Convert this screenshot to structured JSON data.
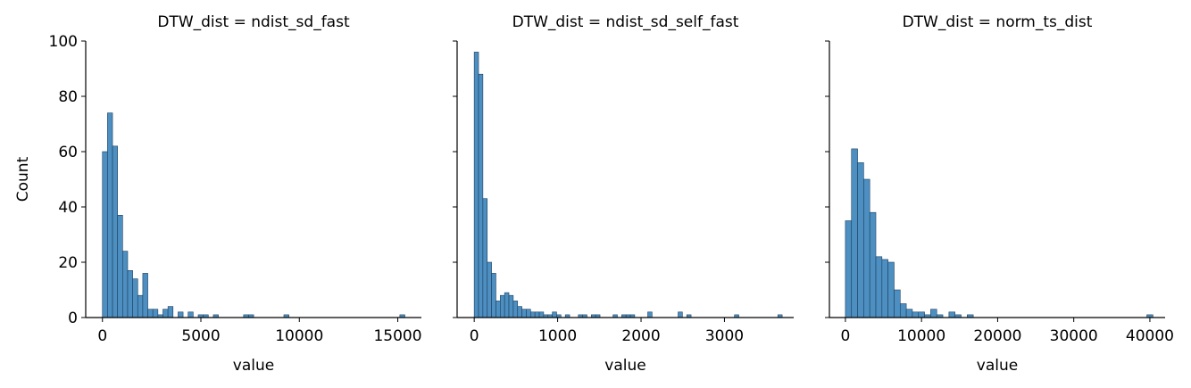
{
  "chart_data": [
    {
      "type": "bar",
      "title": "DTW_dist = ndist_sd_fast",
      "xlabel": "value",
      "ylabel": "Count",
      "xlim": [
        -850,
        16200
      ],
      "ylim": [
        0,
        100
      ],
      "xticks": [
        0,
        5000,
        10000,
        15000
      ],
      "xtick_labels": [
        "0",
        "5000",
        "10000",
        "15000"
      ],
      "yticks": [
        0,
        20,
        40,
        60,
        80,
        100
      ],
      "ytick_labels": [
        "0",
        "20",
        "40",
        "60",
        "80",
        "100"
      ],
      "bin_width": 256,
      "bins": [
        {
          "x": 0,
          "count": 60
        },
        {
          "x": 256,
          "count": 74
        },
        {
          "x": 512,
          "count": 62
        },
        {
          "x": 768,
          "count": 37
        },
        {
          "x": 1024,
          "count": 24
        },
        {
          "x": 1280,
          "count": 17
        },
        {
          "x": 1536,
          "count": 14
        },
        {
          "x": 1792,
          "count": 8
        },
        {
          "x": 2048,
          "count": 16
        },
        {
          "x": 2304,
          "count": 3
        },
        {
          "x": 2560,
          "count": 3
        },
        {
          "x": 2816,
          "count": 1
        },
        {
          "x": 3072,
          "count": 3
        },
        {
          "x": 3328,
          "count": 4
        },
        {
          "x": 3840,
          "count": 2
        },
        {
          "x": 4352,
          "count": 2
        },
        {
          "x": 4864,
          "count": 1
        },
        {
          "x": 5120,
          "count": 1
        },
        {
          "x": 5632,
          "count": 1
        },
        {
          "x": 7168,
          "count": 1
        },
        {
          "x": 7424,
          "count": 1
        },
        {
          "x": 9216,
          "count": 1
        },
        {
          "x": 15104,
          "count": 1
        }
      ]
    },
    {
      "type": "bar",
      "title": "DTW_dist = ndist_sd_self_fast",
      "xlabel": "value",
      "ylabel": "",
      "xlim": [
        -205,
        3830
      ],
      "ylim": [
        0,
        100
      ],
      "xticks": [
        0,
        1000,
        2000,
        3000
      ],
      "xtick_labels": [
        "0",
        "1000",
        "2000",
        "3000"
      ],
      "yticks": [
        0,
        20,
        40,
        60,
        80,
        100
      ],
      "bin_width": 52,
      "bins": [
        {
          "x": 0,
          "count": 96
        },
        {
          "x": 52,
          "count": 88
        },
        {
          "x": 104,
          "count": 43
        },
        {
          "x": 156,
          "count": 20
        },
        {
          "x": 208,
          "count": 16
        },
        {
          "x": 260,
          "count": 6
        },
        {
          "x": 312,
          "count": 8
        },
        {
          "x": 364,
          "count": 9
        },
        {
          "x": 416,
          "count": 8
        },
        {
          "x": 468,
          "count": 6
        },
        {
          "x": 520,
          "count": 4
        },
        {
          "x": 572,
          "count": 3
        },
        {
          "x": 624,
          "count": 3
        },
        {
          "x": 676,
          "count": 2
        },
        {
          "x": 728,
          "count": 2
        },
        {
          "x": 780,
          "count": 2
        },
        {
          "x": 832,
          "count": 1
        },
        {
          "x": 884,
          "count": 1
        },
        {
          "x": 936,
          "count": 2
        },
        {
          "x": 988,
          "count": 1
        },
        {
          "x": 1092,
          "count": 1
        },
        {
          "x": 1248,
          "count": 1
        },
        {
          "x": 1300,
          "count": 1
        },
        {
          "x": 1404,
          "count": 1
        },
        {
          "x": 1456,
          "count": 1
        },
        {
          "x": 1664,
          "count": 1
        },
        {
          "x": 1768,
          "count": 1
        },
        {
          "x": 1820,
          "count": 1
        },
        {
          "x": 1872,
          "count": 1
        },
        {
          "x": 2080,
          "count": 2
        },
        {
          "x": 2444,
          "count": 2
        },
        {
          "x": 2548,
          "count": 1
        },
        {
          "x": 3120,
          "count": 1
        },
        {
          "x": 3640,
          "count": 1
        }
      ]
    },
    {
      "type": "bar",
      "title": "DTW_dist = norm_ts_dist",
      "xlabel": "value",
      "ylabel": "",
      "xlim": [
        -2100,
        42000
      ],
      "ylim": [
        0,
        100
      ],
      "xticks": [
        0,
        10000,
        20000,
        30000,
        40000
      ],
      "xtick_labels": [
        "0",
        "10000",
        "20000",
        "30000",
        "40000"
      ],
      "yticks": [
        0,
        20,
        40,
        60,
        80,
        100
      ],
      "bin_width": 800,
      "bins": [
        {
          "x": 0,
          "count": 35
        },
        {
          "x": 800,
          "count": 61
        },
        {
          "x": 1600,
          "count": 56
        },
        {
          "x": 2400,
          "count": 50
        },
        {
          "x": 3200,
          "count": 38
        },
        {
          "x": 4000,
          "count": 22
        },
        {
          "x": 4800,
          "count": 21
        },
        {
          "x": 5600,
          "count": 20
        },
        {
          "x": 6400,
          "count": 10
        },
        {
          "x": 7200,
          "count": 5
        },
        {
          "x": 8000,
          "count": 3
        },
        {
          "x": 8800,
          "count": 2
        },
        {
          "x": 9600,
          "count": 2
        },
        {
          "x": 10400,
          "count": 1
        },
        {
          "x": 11200,
          "count": 3
        },
        {
          "x": 12000,
          "count": 1
        },
        {
          "x": 13600,
          "count": 2
        },
        {
          "x": 14400,
          "count": 1
        },
        {
          "x": 16000,
          "count": 1
        },
        {
          "x": 39600,
          "count": 1
        }
      ]
    }
  ],
  "colors": {
    "bar_fill": "#4c8fc0",
    "bar_stroke": "#1f3f5f",
    "axis": "#000000",
    "background": "#ffffff"
  }
}
